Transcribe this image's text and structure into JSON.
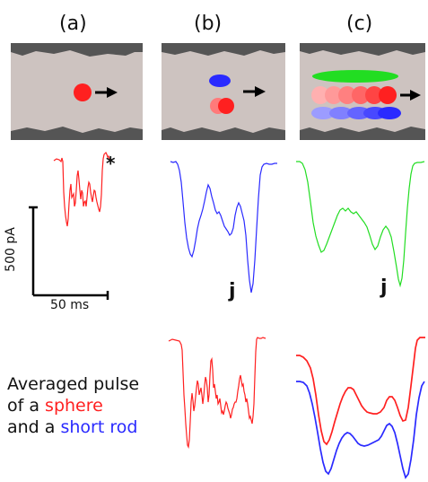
{
  "panels": {
    "a": {
      "label": "(a)"
    },
    "b": {
      "label": "(b)"
    },
    "c": {
      "label": "(c)"
    }
  },
  "annotations": {
    "asterisk": "*",
    "j_b": "j",
    "j_c": "j"
  },
  "scale_bar": {
    "current_label": "500 pA",
    "time_label": "50 ms"
  },
  "caption": {
    "line1": "Averaged pulse",
    "line2_prefix": "of a ",
    "line2_highlight": "sphere",
    "line3_prefix": "and a ",
    "line3_highlight": "short rod"
  },
  "colors": {
    "sphere": "#ff2020",
    "rod": "#2a2aff",
    "long_rod": "#22dd22",
    "pore_wall": "#555555",
    "pore_fill": "#cdc3c0"
  }
}
